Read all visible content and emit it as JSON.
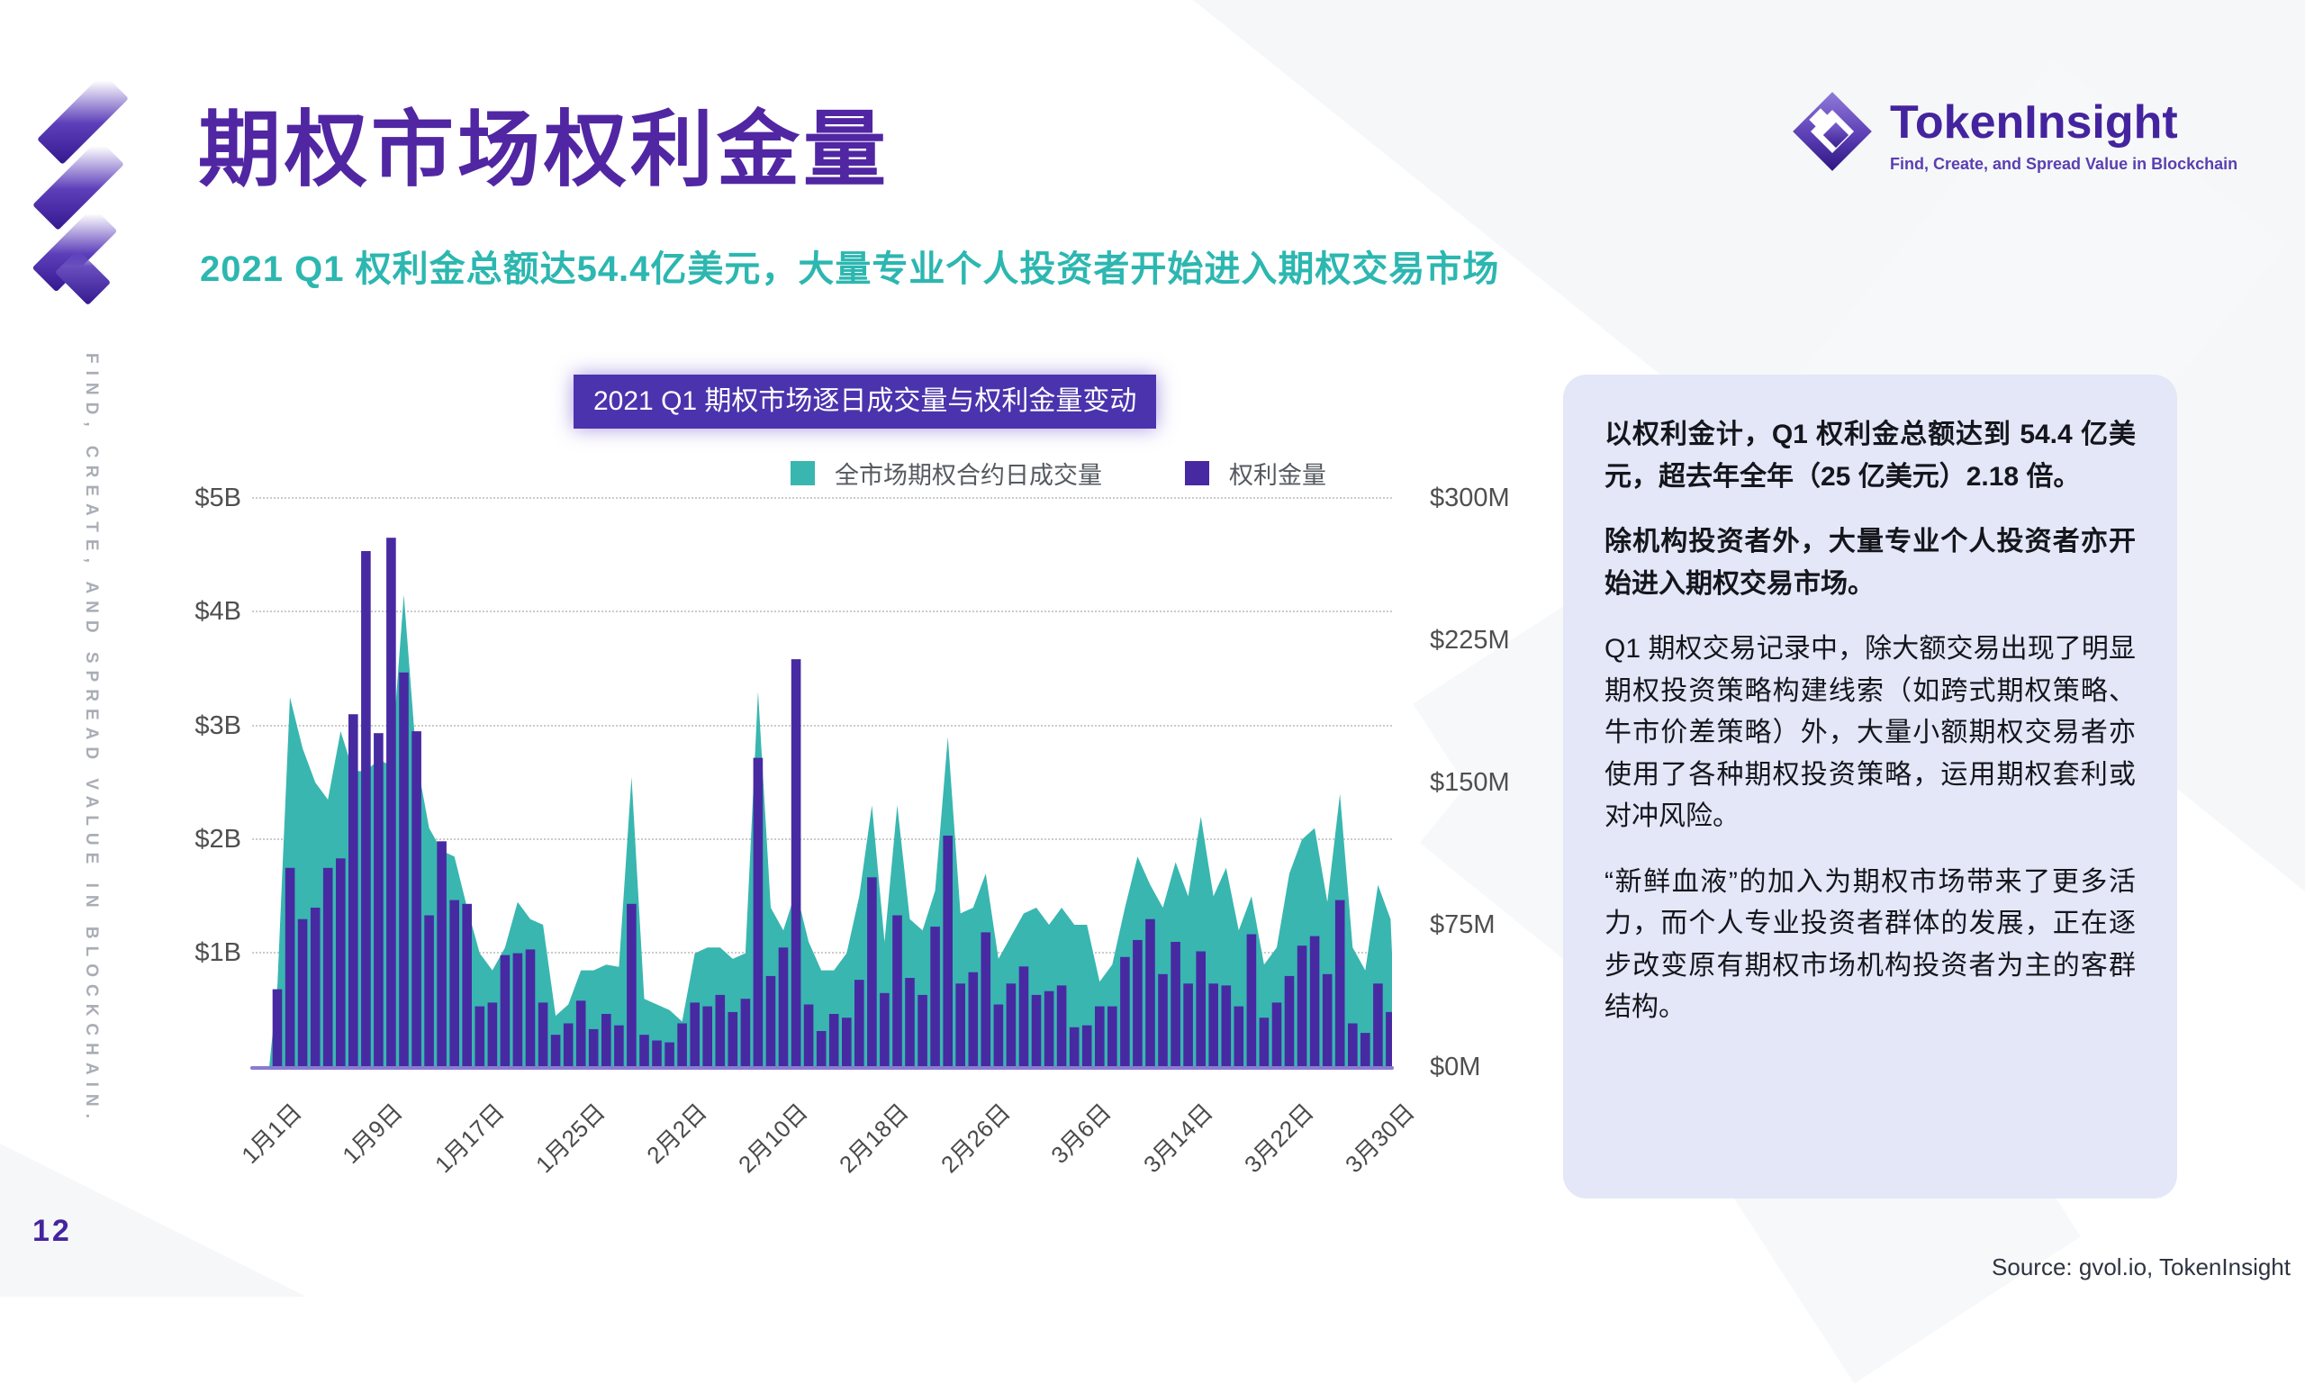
{
  "slide": {
    "page_number": "12",
    "side_text": "FIND, CREATE, AND SPREAD VALUE IN BLOCKCHAIN.",
    "title": "期权市场权利金量",
    "subtitle": "2021 Q1 权利金总额达54.4亿美元，大量专业个人投资者开始进入期权交易市场",
    "source": "Source: gvol.io, TokenInsight"
  },
  "logo": {
    "name": "TokenInsight",
    "tagline": "Find, Create, and Spread Value in Blockchain"
  },
  "panel": {
    "paragraphs": [
      {
        "text": "以权利金计，Q1 权利金总额达到 54.4 亿美元，超去年全年（25 亿美元）2.18 倍。",
        "bold": true
      },
      {
        "text": "除机构投资者外，大量专业个人投资者亦开始进入期权交易市场。",
        "bold": true
      },
      {
        "text": "Q1 期权交易记录中，除大额交易出现了明显期权投资策略构建线索（如跨式期权策略、牛市价差策略）外，大量小额期权交易者亦使用了各种期权投资策略，运用期权套利或对冲风险。",
        "bold": false
      },
      {
        "text": "“新鲜血液”的加入为期权市场带来了更多活力，而个人专业投资者群体的发展，正在逐步改变原有期权市场机构投资者为主的客群结构。",
        "bold": false
      }
    ]
  },
  "chart": {
    "badge_title": "2021 Q1 期权市场逐日成交量与权利金量变动",
    "legend": [
      {
        "label": "全市场期权合约日成交量",
        "color": "#39b6b0"
      },
      {
        "label": "权利金量",
        "color": "#472aa2"
      }
    ],
    "left_axis": [
      "$5B",
      "$4B",
      "$3B",
      "$2B",
      "$1B"
    ],
    "right_axis": [
      "$300M",
      "$225M",
      "$150M",
      "$75M",
      "$0M"
    ],
    "x_labels": [
      "1月1日",
      "1月9日",
      "1月17日",
      "1月25日",
      "2月2日",
      "2月10日",
      "2月18日",
      "2月26日",
      "3月6日",
      "3月14日",
      "3月22日",
      "3月30日"
    ]
  },
  "chart_data": {
    "type": "combo: area (left axis, daily options volume $B) + bar (right axis, premium $M)",
    "title": "2021 Q1 期权市场逐日成交量与权利金量变动",
    "x_start": "2021-01-01",
    "x_end": "2021-03-30",
    "x_tick_labels": [
      "1月1日",
      "1月9日",
      "1月17日",
      "1月25日",
      "2月2日",
      "2月10日",
      "2月18日",
      "2月26日",
      "3月6日",
      "3月14日",
      "3月22日",
      "3月30日"
    ],
    "left_axis_label": "全市场期权合约日成交量",
    "left_axis_range_billion_usd": [
      0,
      5
    ],
    "right_axis_label": "权利金量",
    "right_axis_range_million_usd": [
      0,
      300
    ],
    "grid": "horizontal dotted at $1B steps",
    "legend_position": "top",
    "series_volume_billion_usd": [
      0.7,
      3.25,
      2.8,
      2.5,
      2.35,
      2.95,
      2.6,
      2.6,
      2.7,
      2.65,
      4.15,
      2.7,
      2.1,
      1.9,
      1.85,
      1.4,
      1.0,
      0.85,
      1.05,
      1.45,
      1.3,
      1.25,
      0.45,
      0.55,
      0.85,
      0.85,
      0.9,
      0.88,
      2.55,
      0.6,
      0.55,
      0.5,
      0.4,
      1.0,
      1.05,
      1.05,
      0.95,
      1.0,
      3.3,
      1.4,
      1.2,
      1.55,
      1.1,
      0.85,
      0.85,
      1.0,
      1.5,
      2.3,
      1.1,
      2.3,
      1.3,
      1.2,
      1.55,
      2.9,
      1.35,
      1.4,
      1.7,
      0.95,
      1.15,
      1.35,
      1.4,
      1.25,
      1.4,
      1.25,
      1.25,
      0.75,
      0.9,
      1.4,
      1.85,
      1.6,
      1.4,
      1.8,
      1.5,
      2.2,
      1.5,
      1.75,
      1.2,
      1.5,
      0.9,
      1.05,
      1.7,
      2.0,
      2.1,
      1.45,
      2.4,
      1.05,
      0.85,
      1.6,
      1.3
    ],
    "series_premium_million_usd": [
      41,
      105,
      78,
      84,
      105,
      110,
      186,
      272,
      176,
      279,
      208,
      177,
      80,
      119,
      88,
      86,
      32,
      34,
      59,
      60,
      62,
      34,
      17,
      23,
      35,
      20,
      28,
      22,
      86,
      17,
      14,
      13,
      23,
      34,
      32,
      38,
      29,
      36,
      163,
      48,
      63,
      215,
      33,
      19,
      28,
      26,
      46,
      100,
      39,
      80,
      47,
      38,
      74,
      122,
      44,
      50,
      71,
      33,
      44,
      53,
      38,
      40,
      43,
      21,
      22,
      32,
      32,
      58,
      67,
      78,
      49,
      66,
      44,
      61,
      44,
      43,
      32,
      70,
      26,
      34,
      48,
      64,
      69,
      49,
      88,
      23,
      18,
      44,
      29
    ]
  },
  "colors": {
    "volume_teal": "#39b6b0",
    "premium_purple": "#472aa2",
    "title_purple": "#5126a3",
    "subtitle_teal": "#2cb7b0",
    "badge_bg": "#4b33ad",
    "panel_bg": "#e3e7f8",
    "baseline_purple": "#8a7bd3"
  }
}
